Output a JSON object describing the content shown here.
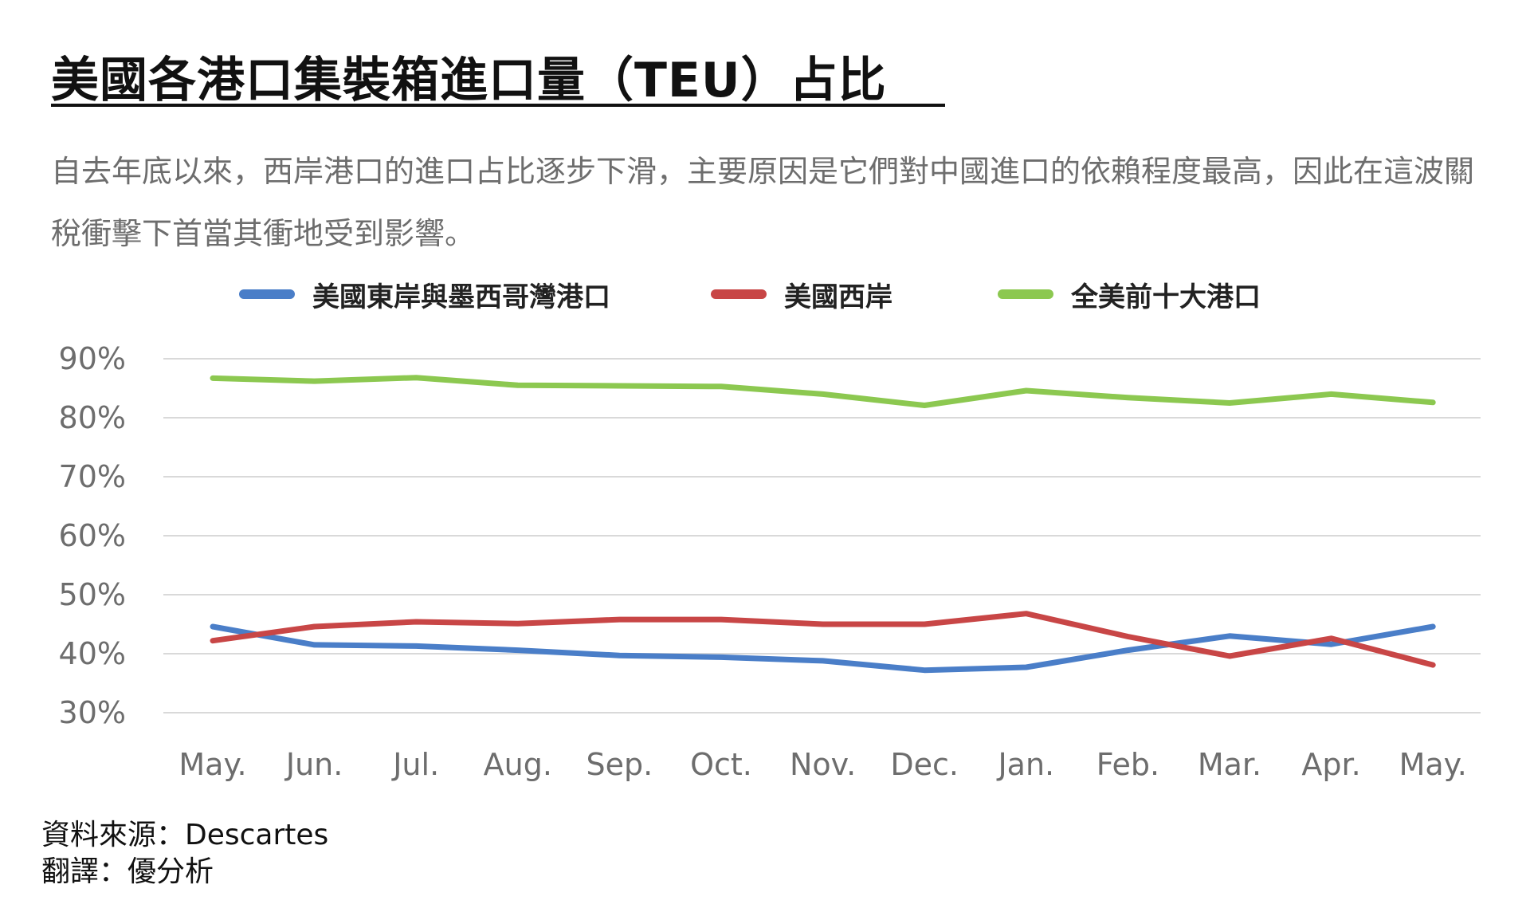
{
  "title": "美國各港口集裝箱進口量（TEU）占比",
  "subtitle": "自去年底以來，西岸港口的進口占比逐步下滑，主要原因是它們對中國進口的依賴程度最高，因此在這波關稅衝擊下首當其衝地受到影響。",
  "source": "資料來源：Descartes",
  "translation": "翻譯：優分析",
  "chart_data": {
    "type": "line",
    "categories": [
      "May.",
      "Jun.",
      "Jul.",
      "Aug.",
      "Sep.",
      "Oct.",
      "Nov.",
      "Dec.",
      "Jan.",
      "Feb.",
      "Mar.",
      "Apr.",
      "May."
    ],
    "ylim": [
      30,
      90
    ],
    "yticks": [
      90,
      80,
      70,
      60,
      50,
      40,
      30
    ],
    "ytick_labels": [
      "90%",
      "80%",
      "70%",
      "60%",
      "50%",
      "40%",
      "30%"
    ],
    "grid": true,
    "legend_position": "top",
    "series": [
      {
        "name": "美國東岸與墨西哥灣港口",
        "color": "#4a7ec8",
        "values": [
          44.6,
          41.5,
          41.3,
          40.6,
          39.7,
          39.4,
          38.8,
          37.2,
          37.7,
          40.6,
          43.0,
          41.6,
          44.6
        ]
      },
      {
        "name": "美國西岸",
        "color": "#c84646",
        "values": [
          42.2,
          44.6,
          45.4,
          45.1,
          45.8,
          45.8,
          45.0,
          45.0,
          46.8,
          42.9,
          39.6,
          42.6,
          38.1
        ]
      },
      {
        "name": "全美前十大港口",
        "color": "#8cc850",
        "values": [
          86.7,
          86.2,
          86.8,
          85.5,
          85.4,
          85.3,
          84.0,
          82.1,
          84.6,
          83.4,
          82.5,
          84.0,
          82.6
        ]
      }
    ]
  }
}
